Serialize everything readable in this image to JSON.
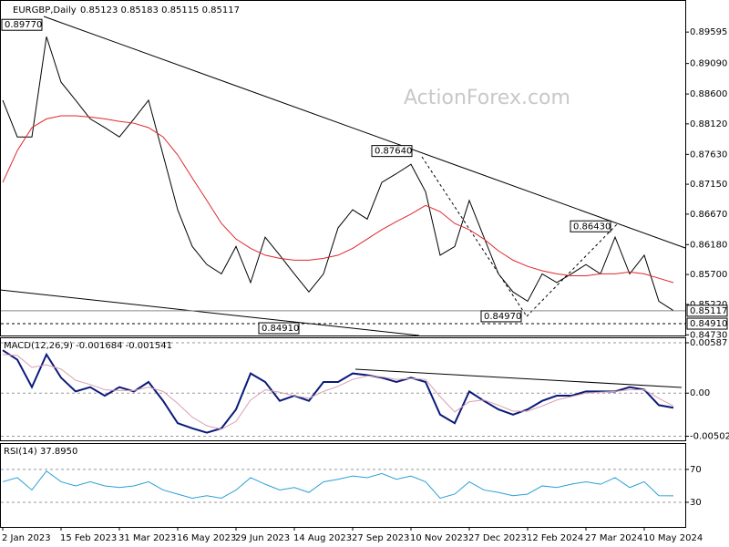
{
  "chart_data": [
    {
      "type": "line",
      "title": "EURGBP,Daily",
      "subtitle": "0.85123 0.85183 0.85115 0.85117",
      "watermark": "ActionForex.com",
      "categories": [
        "2 Jan 2023",
        null,
        null,
        null,
        "15 Feb 2023",
        null,
        null,
        null,
        "31 Mar 2023",
        null,
        null,
        null,
        "16 May 2023",
        null,
        null,
        null,
        "29 Jun 2023",
        null,
        null,
        null,
        "14 Aug 2023",
        null,
        null,
        null,
        "27 Sep 2023",
        null,
        null,
        null,
        "10 Nov 2023",
        null,
        null,
        null,
        "27 Dec 2023",
        null,
        null,
        null,
        "12 Feb 2024",
        null,
        null,
        null,
        "27 Mar 2024",
        null,
        null,
        null,
        "10 May 2024",
        null,
        null
      ],
      "series": [
        {
          "color": "#000000",
          "values": [
            0.885,
            0.8791,
            0.8791,
            0.8952,
            0.8879,
            0.885,
            0.882,
            0.8806,
            0.8791,
            0.882,
            0.885,
            0.8762,
            0.8674,
            0.8615,
            0.8586,
            0.8571,
            0.8615,
            0.8557,
            0.863,
            0.8601,
            0.8571,
            0.8542,
            0.8571,
            0.8645,
            0.8674,
            0.8659,
            0.8718,
            0.8732,
            0.8747,
            0.8703,
            0.8601,
            0.8615,
            0.8689,
            0.863,
            0.8571,
            0.8542,
            0.8527,
            0.8571,
            0.8557,
            0.8571,
            0.8586,
            0.8571,
            0.863,
            0.8571,
            0.8601,
            0.8527,
            0.8512
          ]
        },
        {
          "color": "#e0262c",
          "values": [
            0.8718,
            0.8769,
            0.8806,
            0.882,
            0.8825,
            0.8825,
            0.8823,
            0.882,
            0.8816,
            0.8813,
            0.8806,
            0.8791,
            0.8762,
            0.8725,
            0.8689,
            0.8652,
            0.8627,
            0.8612,
            0.8601,
            0.8596,
            0.8593,
            0.8593,
            0.8596,
            0.8601,
            0.8612,
            0.8627,
            0.8642,
            0.8655,
            0.8667,
            0.8681,
            0.8671,
            0.8652,
            0.8642,
            0.8627,
            0.8608,
            0.8593,
            0.8583,
            0.8576,
            0.8571,
            0.8568,
            0.8568,
            0.8571,
            0.8571,
            0.8574,
            0.8571,
            0.8564,
            0.8557
          ]
        }
      ],
      "ylim": [
        0.8472,
        0.9011
      ],
      "yticks": [
        0.89595,
        {
          "value": 0.8909,
          "label": "0.89090"
        },
        {
          "value": 0.886,
          "label": "0.88600"
        },
        {
          "value": 0.8812,
          "label": "0.88120"
        },
        {
          "value": 0.8763,
          "label": "0.87630"
        },
        {
          "value": 0.8715,
          "label": "0.87150"
        },
        {
          "value": 0.8667,
          "label": "0.86670"
        },
        {
          "value": 0.8618,
          "label": "0.86180"
        },
        {
          "value": 0.857,
          "label": "0.85700"
        },
        {
          "value": 0.8522,
          "label": "0.85220"
        },
        {
          "value": 0.8473,
          "label": "0.84730"
        }
      ],
      "price_markers": [
        0.85117,
        {
          "value": 0.8491,
          "label": "0.84910"
        }
      ],
      "annotations": [
        {
          "value": 0.8977,
          "label": "0.89770"
        },
        {
          "value": 0.8764,
          "label": "0.87640"
        },
        {
          "value": 0.8643,
          "label": "0.86430"
        },
        {
          "value": 0.8497,
          "label": "0.84970"
        },
        {
          "value": 0.8491,
          "label": "0.84910"
        }
      ]
    },
    {
      "type": "line",
      "title": "MACD(12,26,9) -0.001684 -0.001541",
      "series": [
        {
          "color": "#0a1a7a",
          "values": [
            0.005,
            0.0039,
            0.0007,
            0.0045,
            0.0018,
            0.0002,
            0.0007,
            -0.0003,
            0.0007,
            0.0002,
            0.0013,
            -0.0009,
            -0.0035,
            -0.0041,
            -0.0046,
            -0.0041,
            -0.0019,
            0.0023,
            0.0013,
            -0.0009,
            -0.0003,
            -0.0009,
            0.0013,
            0.0013,
            0.0023,
            0.0021,
            0.0018,
            0.0013,
            0.0018,
            0.0013,
            -0.0025,
            -0.0035,
            0.0002,
            -0.0009,
            -0.0019,
            -0.0025,
            -0.0019,
            -0.0009,
            -0.0003,
            -0.0003,
            0.0002,
            0.0002,
            0.0002,
            0.0007,
            0.0004,
            -0.0014,
            -0.0017
          ]
        },
        {
          "color": "#d9a0b0",
          "values": [
            0.0045,
            0.0044,
            0.003,
            0.0033,
            0.0028,
            0.0015,
            0.001,
            0.0004,
            0.0003,
            0.0003,
            0.0007,
            0.0002,
            -0.0012,
            -0.0028,
            -0.0038,
            -0.0042,
            -0.0033,
            -0.0008,
            0.0004,
            0.0001,
            -0.0003,
            -0.0006,
            0.0002,
            0.0008,
            0.0016,
            0.002,
            0.0019,
            0.0016,
            0.0017,
            0.0016,
            -0.0004,
            -0.0022,
            -0.001,
            -0.0008,
            -0.0014,
            -0.0021,
            -0.0021,
            -0.0015,
            -0.0008,
            -0.0004,
            0,
            0.0001,
            0.0002,
            0.0004,
            0.0004,
            -0.0006,
            -0.0015
          ]
        }
      ],
      "ylim": [
        -0.0055,
        0.0064
      ],
      "yticks": [
        0.00587,
        {
          "value": 0,
          "label": "0.00"
        },
        -0.005021
      ]
    },
    {
      "type": "line",
      "title": "RSI(14) 37.8950",
      "series": [
        {
          "color": "#2a9fd6",
          "values": [
            55,
            60,
            45,
            68,
            55,
            50,
            55,
            50,
            48,
            50,
            55,
            45,
            40,
            35,
            38,
            35,
            45,
            60,
            52,
            45,
            48,
            42,
            55,
            58,
            62,
            60,
            65,
            58,
            62,
            55,
            35,
            40,
            55,
            45,
            42,
            38,
            40,
            50,
            48,
            52,
            55,
            52,
            60,
            48,
            55,
            38,
            37.9
          ]
        }
      ],
      "ylim": [
        0,
        101
      ],
      "yticks": [
        70,
        30
      ]
    }
  ]
}
